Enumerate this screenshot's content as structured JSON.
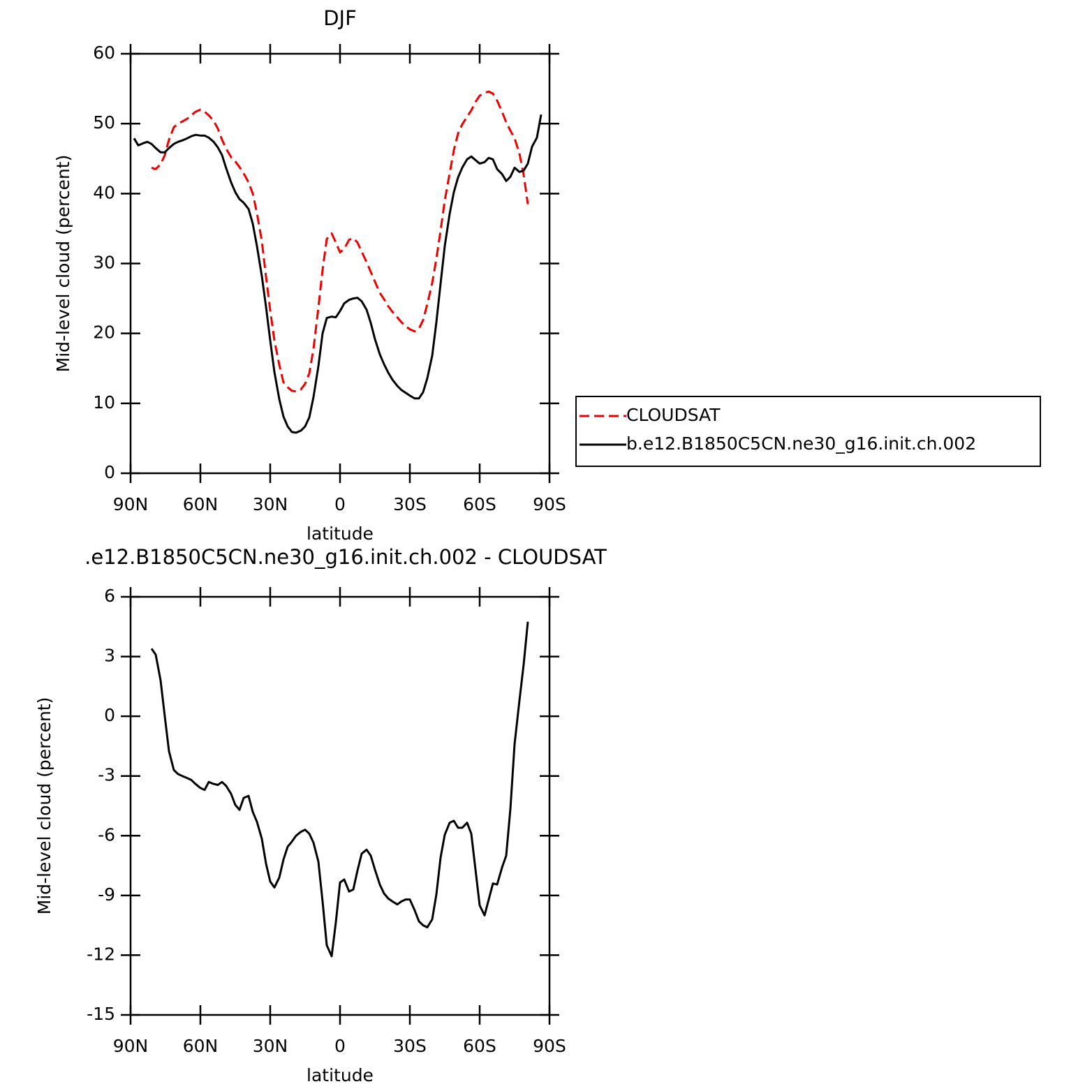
{
  "chart_data": [
    {
      "type": "line",
      "title": "DJF",
      "xlabel": "latitude",
      "ylabel": "Mid-level cloud (percent)",
      "xlim": [
        90,
        -90
      ],
      "xticks": [
        {
          "value": 90,
          "label": "90N"
        },
        {
          "value": 60,
          "label": "60N"
        },
        {
          "value": 30,
          "label": "30N"
        },
        0,
        {
          "value": -30,
          "label": "30S"
        },
        {
          "value": -60,
          "label": "60S"
        },
        {
          "value": -90,
          "label": "90S"
        }
      ],
      "ylim": [
        0,
        60
      ],
      "yticks": [
        0,
        10,
        20,
        30,
        40,
        50,
        60
      ],
      "legend": true,
      "x": [
        88.5,
        86.7,
        84.6,
        82.8,
        81,
        79.2,
        77.1,
        75.3,
        73.5,
        71.4,
        69.6,
        67.8,
        65.7,
        63.9,
        62.1,
        60,
        58.2,
        56.4,
        54.3,
        52.5,
        50.7,
        48.9,
        46.8,
        45,
        43.2,
        41.4,
        39.3,
        37.5,
        35.7,
        33.6,
        31.8,
        30,
        28.2,
        26.1,
        24.3,
        22.5,
        20.7,
        18.9,
        16.8,
        15,
        13.2,
        11.4,
        9.3,
        7.5,
        5.7,
        3.6,
        1.8,
        0,
        -1.8,
        -3.9,
        -5.7,
        -7.5,
        -9.3,
        -11.4,
        -13.2,
        -15,
        -17.1,
        -18.9,
        -20.7,
        -22.5,
        -24.6,
        -26.4,
        -28.2,
        -30,
        -32.1,
        -33.9,
        -35.7,
        -37.5,
        -39.6,
        -41.4,
        -43.2,
        -45,
        -47.1,
        -48.9,
        -50.7,
        -52.5,
        -54.6,
        -56.4,
        -58.2,
        -60,
        -62.1,
        -63.9,
        -65.7,
        -67.5,
        -69.6,
        -71.4,
        -73.2,
        -75,
        -77.1,
        -78.9,
        -80.7,
        -82.5,
        -84.6,
        -86.4
      ],
      "series": [
        {
          "name": "CLOUDSAT",
          "color": "#ee0000",
          "dash": true,
          "values": [
            null,
            null,
            null,
            null,
            43.7,
            43.5,
            44.2,
            45.5,
            47.7,
            49.5,
            50.0,
            50.3,
            50.7,
            51.2,
            51.7,
            52.0,
            51.7,
            51.2,
            50.4,
            49.3,
            47.7,
            46.4,
            45.2,
            44.6,
            43.8,
            42.9,
            41.6,
            40.0,
            37.2,
            33.2,
            28.1,
            23.3,
            19.0,
            15.5,
            13.0,
            12.3,
            11.8,
            11.7,
            12.0,
            12.8,
            14.3,
            17.8,
            23.7,
            29.1,
            33.5,
            34.3,
            33.0,
            31.6,
            32.1,
            33.4,
            33.6,
            33.0,
            31.7,
            30.2,
            28.8,
            27.4,
            25.8,
            24.9,
            23.9,
            23.1,
            22.3,
            21.6,
            21.0,
            20.6,
            20.3,
            20.7,
            21.9,
            24.2,
            27.2,
            30.7,
            34.7,
            39.0,
            42.9,
            46.2,
            48.6,
            49.9,
            51.0,
            51.9,
            53.1,
            54.0,
            54.4,
            54.6,
            54.3,
            53.3,
            51.7,
            50.2,
            49.0,
            47.9,
            45.7,
            42.7,
            38.5,
            null,
            null,
            null
          ]
        },
        {
          "name": "b.e12.B1850C5CN.ne30_g16.init.ch.002",
          "color": "#000000",
          "dash": false,
          "values": [
            47.9,
            46.9,
            47.2,
            47.4,
            47.1,
            46.5,
            45.9,
            45.9,
            46.5,
            47.1,
            47.4,
            47.6,
            47.9,
            48.2,
            48.4,
            48.3,
            48.3,
            48.0,
            47.4,
            46.6,
            45.5,
            43.6,
            41.6,
            40.2,
            39.2,
            38.7,
            37.8,
            35.7,
            32.5,
            28.2,
            23.8,
            19.0,
            14.5,
            10.6,
            8.1,
            6.7,
            5.9,
            5.8,
            6.1,
            6.7,
            8.0,
            10.9,
            15.3,
            20.0,
            22.2,
            22.4,
            22.3,
            23.2,
            24.3,
            24.8,
            25.0,
            25.1,
            24.6,
            23.4,
            21.5,
            19.2,
            17.0,
            15.6,
            14.4,
            13.4,
            12.5,
            11.9,
            11.5,
            11.1,
            10.7,
            10.7,
            11.6,
            13.6,
            16.8,
            21.6,
            27.1,
            32.5,
            37.1,
            40.2,
            42.3,
            43.7,
            44.9,
            45.3,
            44.8,
            44.3,
            44.5,
            45.1,
            44.9,
            43.5,
            42.8,
            41.8,
            42.4,
            43.7,
            43.1,
            43.3,
            44.3,
            46.7,
            48.0,
            51.3
          ]
        }
      ]
    },
    {
      "type": "line",
      "title": ".e12.B1850C5CN.ne30_g16.init.ch.002 - CLOUDSAT",
      "xlabel": "latitude",
      "ylabel": "Mid-level cloud (percent)",
      "xlim": [
        90,
        -90
      ],
      "xticks": [
        {
          "value": 90,
          "label": "90N"
        },
        {
          "value": 60,
          "label": "60N"
        },
        {
          "value": 30,
          "label": "30N"
        },
        0,
        {
          "value": -30,
          "label": "30S"
        },
        {
          "value": -60,
          "label": "60S"
        },
        {
          "value": -90,
          "label": "90S"
        }
      ],
      "ylim": [
        -15,
        6
      ],
      "yticks": [
        -15,
        -12,
        -9,
        -6,
        -3,
        0,
        3,
        6
      ],
      "legend": false,
      "x": [
        88.5,
        86.7,
        84.6,
        82.8,
        81,
        79.2,
        77.1,
        75.3,
        73.5,
        71.4,
        69.6,
        67.8,
        65.7,
        63.9,
        62.1,
        60,
        58.2,
        56.4,
        54.3,
        52.5,
        50.7,
        48.9,
        46.8,
        45,
        43.2,
        41.4,
        39.3,
        37.5,
        35.7,
        33.6,
        31.8,
        30,
        28.2,
        26.1,
        24.3,
        22.5,
        20.7,
        18.9,
        16.8,
        15,
        13.2,
        11.4,
        9.3,
        7.5,
        5.7,
        3.6,
        1.8,
        0,
        -1.8,
        -3.9,
        -5.7,
        -7.5,
        -9.3,
        -11.4,
        -13.2,
        -15,
        -17.1,
        -18.9,
        -20.7,
        -22.5,
        -24.6,
        -26.4,
        -28.2,
        -30,
        -32.1,
        -33.9,
        -35.7,
        -37.5,
        -39.6,
        -41.4,
        -43.2,
        -45,
        -47.1,
        -48.9,
        -50.7,
        -52.5,
        -54.6,
        -56.4,
        -58.2,
        -60,
        -62.1,
        -63.9,
        -65.7,
        -67.5,
        -69.6,
        -71.4,
        -73.2,
        -75,
        -77.1,
        -78.9,
        -80.7,
        -82.5,
        -84.6,
        -86.4
      ],
      "series": [
        {
          "color": "#000000",
          "dash": false,
          "values": [
            null,
            null,
            null,
            null,
            3.4,
            3.1,
            1.8,
            0,
            -1.75,
            -2.7,
            -2.9,
            -3.0,
            -3.1,
            -3.2,
            -3.4,
            -3.6,
            -3.7,
            -3.3,
            -3.4,
            -3.45,
            -3.3,
            -3.5,
            -3.9,
            -4.45,
            -4.7,
            -4.1,
            -4.0,
            -4.8,
            -5.3,
            -6.15,
            -7.4,
            -8.3,
            -8.6,
            -8.1,
            -7.2,
            -6.55,
            -6.3,
            -6.0,
            -5.8,
            -5.7,
            -5.9,
            -6.35,
            -7.3,
            -9.3,
            -11.5,
            -12.05,
            -10.35,
            -8.35,
            -8.2,
            -8.8,
            -8.7,
            -7.75,
            -6.9,
            -6.7,
            -7.0,
            -7.7,
            -8.45,
            -8.9,
            -9.15,
            -9.3,
            -9.45,
            -9.3,
            -9.2,
            -9.2,
            -9.75,
            -10.3,
            -10.5,
            -10.6,
            -10.2,
            -8.95,
            -7.1,
            -5.95,
            -5.35,
            -5.25,
            -5.6,
            -5.6,
            -5.35,
            -5.9,
            -7.7,
            -9.5,
            -10.0,
            -9.2,
            -8.4,
            -8.45,
            -7.6,
            -7.0,
            -4.65,
            -1.4,
            0.8,
            2.6,
            4.75,
            null,
            null,
            null
          ]
        }
      ]
    }
  ]
}
